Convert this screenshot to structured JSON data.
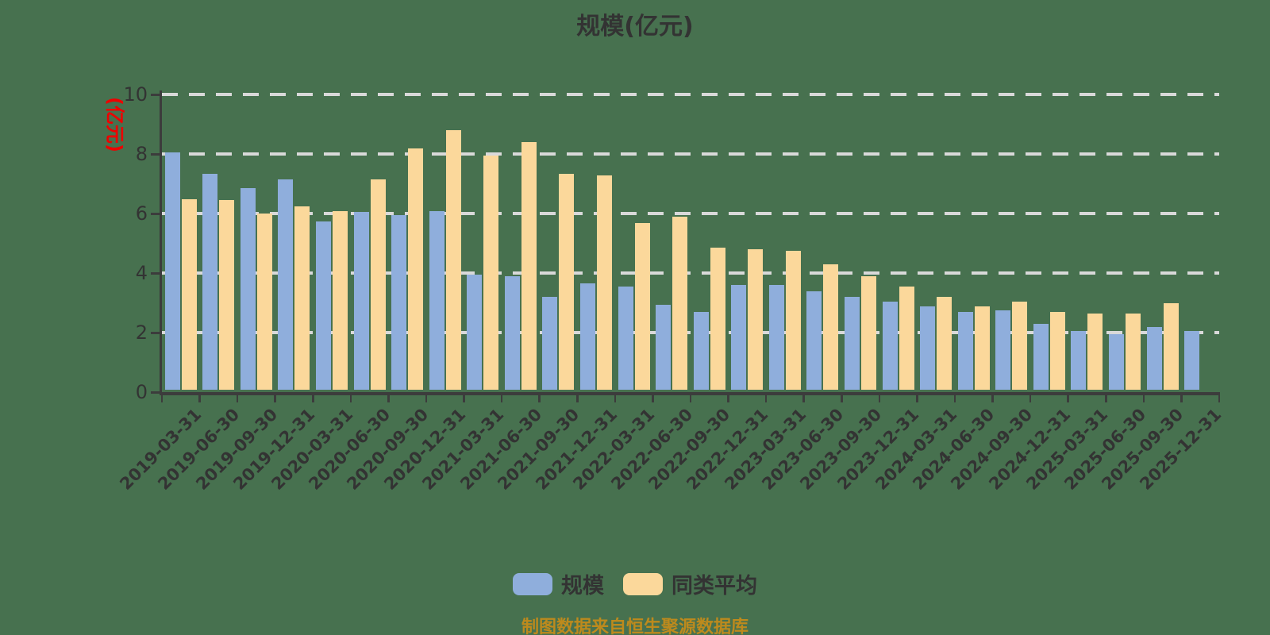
{
  "page": {
    "background_color": "#47714F",
    "text_color": "#333333",
    "axis_color": "#3C3C3C",
    "gridline_color": "#D9D9D9"
  },
  "chart_data": {
    "type": "bar",
    "title": "规模(亿元)",
    "y_axis_name": "(亿元)",
    "y_axis_name_color": "#EE0000",
    "ylim": [
      0,
      10
    ],
    "y_ticks": [
      0,
      2,
      4,
      6,
      8,
      10
    ],
    "grid": true,
    "legend_position": "bottom",
    "categories": [
      "2019-03-31",
      "2019-06-30",
      "2019-09-30",
      "2019-12-31",
      "2020-03-31",
      "2020-06-30",
      "2020-09-30",
      "2020-12-31",
      "2021-03-31",
      "2021-06-30",
      "2021-09-30",
      "2021-12-31",
      "2022-03-31",
      "2022-06-30",
      "2022-09-30",
      "2022-12-31",
      "2023-03-31",
      "2023-06-30",
      "2023-09-30",
      "2023-12-31",
      "2024-03-31",
      "2024-06-30",
      "2024-09-30",
      "2024-12-31",
      "2025-03-31",
      "2025-06-30",
      "2025-09-30",
      "2025-12-31"
    ],
    "series": [
      {
        "name": "规模",
        "color": "#8FAEDC",
        "values": [
          7.95,
          7.25,
          6.75,
          7.05,
          5.65,
          5.95,
          5.85,
          6.0,
          3.85,
          3.8,
          3.1,
          3.55,
          3.45,
          2.85,
          2.6,
          3.5,
          3.5,
          3.3,
          3.1,
          2.95,
          2.8,
          2.6,
          2.65,
          2.2,
          1.95,
          1.85,
          2.1,
          1.95
        ]
      },
      {
        "name": "同类平均",
        "color": "#FBD89B",
        "values": [
          6.4,
          6.35,
          5.9,
          6.15,
          6.0,
          7.05,
          8.1,
          8.7,
          7.85,
          8.3,
          7.25,
          7.2,
          5.6,
          5.8,
          4.75,
          4.7,
          4.65,
          4.2,
          3.8,
          3.45,
          3.1,
          2.8,
          2.95,
          2.6,
          2.55,
          2.55,
          2.9,
          null
        ]
      }
    ]
  },
  "footer": {
    "caption": "制图数据来自恒生聚源数据库",
    "caption_color": "#BD8A1D"
  }
}
